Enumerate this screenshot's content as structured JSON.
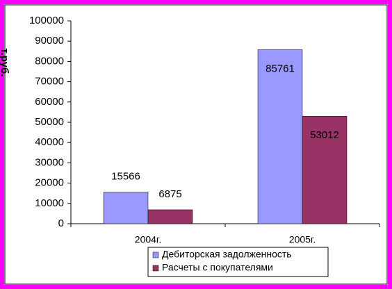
{
  "chart_data": {
    "type": "bar",
    "y_label": "т.руб.",
    "categories": [
      "2004г.",
      "2005г."
    ],
    "series": [
      {
        "name": "Дебиторская задолженность",
        "color": "#9999ff",
        "values": [
          15566,
          85761
        ]
      },
      {
        "name": "Расчеты с покупателями",
        "color": "#993366",
        "values": [
          6875,
          53012
        ]
      }
    ],
    "ylim": [
      0,
      100000
    ],
    "yticks": [
      0,
      10000,
      20000,
      30000,
      40000,
      50000,
      60000,
      70000,
      80000,
      90000,
      100000
    ]
  }
}
